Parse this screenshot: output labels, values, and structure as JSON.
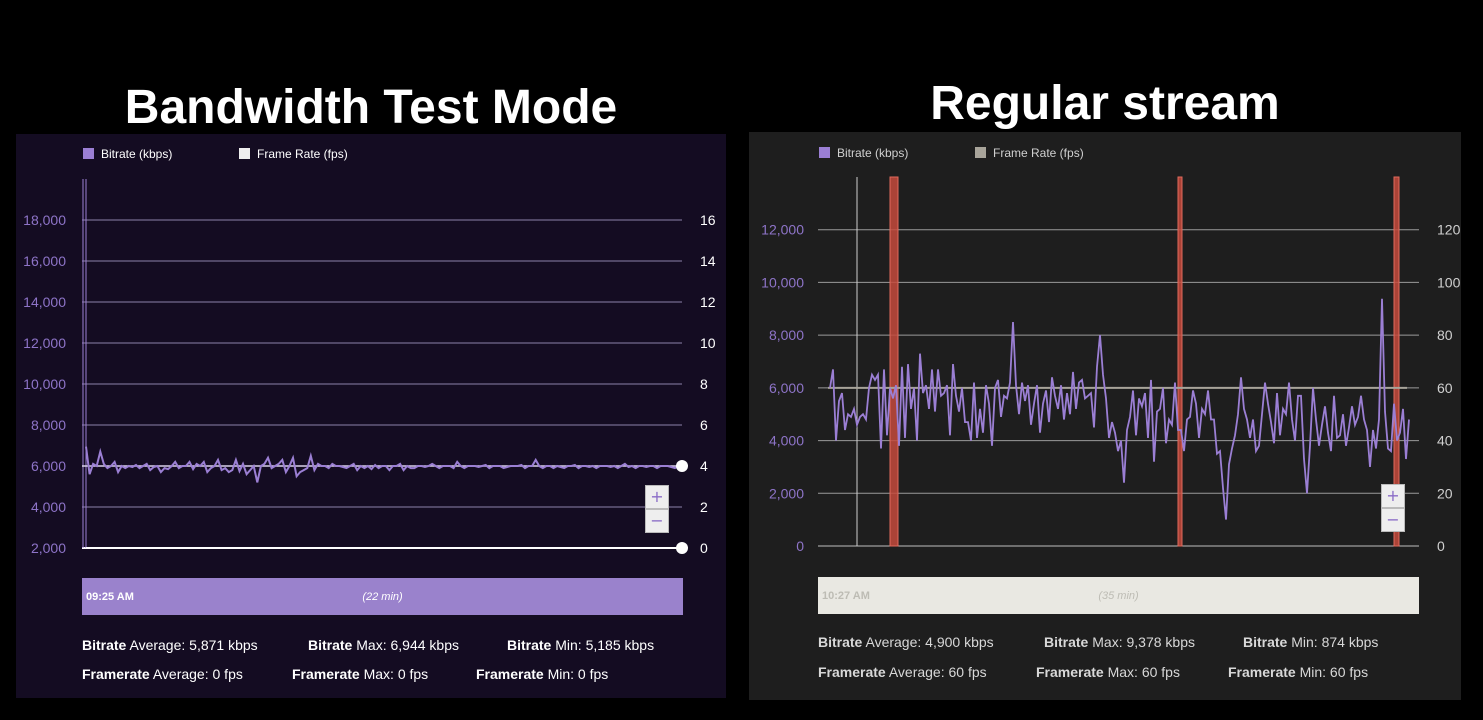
{
  "headings": {
    "left": "Bandwidth Test Mode",
    "right": "Regular stream"
  },
  "chart_data": [
    {
      "type": "line",
      "title": "Bandwidth Test Mode",
      "legend": [
        "Bitrate (kbps)",
        "Frame Rate (fps)"
      ],
      "legend_placement": "top-left",
      "grid": true,
      "y_left_ticks": [
        "2,000",
        "4,000",
        "6,000",
        "8,000",
        "10,000",
        "12,000",
        "14,000",
        "16,000",
        "18,000"
      ],
      "y_right_ticks": [
        "0",
        "2",
        "4",
        "6",
        "8",
        "10",
        "12",
        "14",
        "16"
      ],
      "ylim_left": [
        2000,
        20000
      ],
      "ylim_right": [
        0,
        18
      ],
      "series": [
        {
          "name": "Bitrate (kbps)",
          "color": "#9b7fd4",
          "values": [
            6944,
            5600,
            6100,
            6000,
            6700,
            6100,
            5900,
            6000,
            6200,
            5700,
            6000,
            5900,
            6000,
            5950,
            6050,
            5900,
            6000,
            6100,
            5800,
            5950,
            6000,
            5700,
            5900,
            5850,
            6000,
            6200,
            5900,
            6000,
            6000,
            6200,
            5850,
            6100,
            6000,
            6200,
            5700,
            5900,
            6000,
            6300,
            5800,
            5900,
            5700,
            5800,
            6300,
            5750,
            6100,
            5600,
            5800,
            6000,
            5200,
            6000,
            6100,
            6400,
            5900,
            6000,
            6100,
            6300,
            5700,
            6000,
            6400,
            5500,
            5700,
            5800,
            5900,
            6500,
            5800,
            6100,
            6000,
            6000,
            5900,
            6100,
            6000,
            6000,
            5950,
            5900,
            6000,
            6100,
            5800,
            6000,
            5900,
            6000,
            5850,
            6050,
            5900,
            6000,
            6000,
            5800,
            6000,
            6000,
            6100,
            5800,
            6000,
            5900,
            5900,
            6000,
            6000,
            5950,
            6000,
            6100,
            6000,
            5900,
            6000,
            6000,
            6000,
            5900,
            6200,
            6000,
            5900,
            6000,
            6000,
            6000,
            5950,
            6000,
            6050,
            5900,
            6000,
            6000,
            6000,
            5900,
            5950,
            6000,
            6000,
            6000,
            6050,
            5900,
            6000,
            6000,
            6300,
            6000,
            5900,
            6000,
            6000,
            5900,
            6000,
            5950,
            5900,
            6000,
            6000,
            6050,
            5900,
            6000,
            6000,
            5950,
            6000,
            5900,
            6000,
            6000,
            6000,
            5950,
            6000,
            5900,
            6000,
            6100,
            5950,
            6000,
            5900,
            6000,
            6000,
            5950,
            6000,
            6000,
            5900,
            6000,
            6000,
            6000,
            5950,
            5900,
            6000,
            6000
          ]
        },
        {
          "name": "Frame Rate (fps)",
          "color": "#ffffff",
          "values": [
            0,
            0
          ]
        }
      ],
      "overlay_line_value_kbps": 6000,
      "zoom": {
        "plus": "+",
        "minus": "−"
      },
      "timeline": {
        "start": "09:25 AM",
        "duration": "(22 min)"
      },
      "stats": {
        "bitrate_label": "Bitrate",
        "framerate_label": "Framerate",
        "bitrate_avg": "Average: 5,871 kbps",
        "bitrate_max": "Max: 6,944 kbps",
        "bitrate_min": "Min: 5,185 kbps",
        "framerate_avg": "Average: 0 fps",
        "framerate_max": "Max: 0 fps",
        "framerate_min": "Min: 0 fps"
      }
    },
    {
      "type": "line",
      "title": "Regular stream",
      "legend": [
        "Bitrate (kbps)",
        "Frame Rate (fps)"
      ],
      "legend_placement": "top-left",
      "grid": true,
      "y_left_ticks": [
        "0",
        "2,000",
        "4,000",
        "6,000",
        "8,000",
        "10,000",
        "12,000"
      ],
      "y_right_ticks": [
        "0",
        "20",
        "40",
        "60",
        "80",
        "100",
        "120"
      ],
      "ylim_left": [
        0,
        14000
      ],
      "ylim_right": [
        0,
        140
      ],
      "series": [
        {
          "name": "Bitrate (kbps)",
          "color": "#9b7fd4",
          "values": [
            6000,
            6700,
            4000,
            5500,
            5800,
            4400,
            5000,
            4900,
            5200,
            4600,
            4900,
            5000,
            4800,
            6000,
            6500,
            6300,
            6500,
            3700,
            6700,
            4200,
            6000,
            5600,
            6100,
            3800,
            6800,
            4100,
            6900,
            5200,
            6000,
            4000,
            7300,
            5800,
            6100,
            5200,
            6700,
            5100,
            6700,
            5700,
            5800,
            6100,
            4200,
            6900,
            5700,
            5100,
            6000,
            4700,
            4700,
            4000,
            6200,
            4100,
            5200,
            4300,
            6100,
            5400,
            3800,
            6000,
            6300,
            4900,
            5700,
            5600,
            6200,
            8500,
            6100,
            5000,
            6200,
            5500,
            6100,
            4600,
            5400,
            6100,
            4300,
            5400,
            5900,
            4700,
            6400,
            5700,
            5200,
            6100,
            4800,
            5800,
            5000,
            6600,
            5200,
            6200,
            6300,
            5600,
            5700,
            5800,
            4500,
            6800,
            8000,
            6500,
            5600,
            4100,
            4700,
            4300,
            3600,
            4000,
            2400,
            4400,
            4900,
            5900,
            4200,
            5600,
            5300,
            5800,
            4100,
            6300,
            3200,
            5100,
            5200,
            6000,
            3900,
            4800,
            4600,
            6200,
            4400,
            4400,
            3600,
            4800,
            4900,
            5900,
            5400,
            4100,
            5200,
            5000,
            5900,
            4800,
            4800,
            3500,
            3600,
            2200,
            1000,
            3100,
            3700,
            4200,
            5000,
            6400,
            5200,
            4800,
            4100,
            4800,
            3600,
            3800,
            5000,
            6200,
            5400,
            4700,
            3900,
            5800,
            4200,
            5200,
            5000,
            6200,
            4800,
            4000,
            5700,
            5700,
            3300,
            2000,
            3800,
            6000,
            4800,
            3800,
            4600,
            5300,
            4300,
            3600,
            5700,
            4100,
            4200,
            5000,
            3800,
            4500,
            5300,
            4600,
            4900,
            5700,
            4800,
            4400,
            3000,
            4400,
            3700,
            4800,
            9378,
            5100,
            3700,
            3600,
            5400,
            4000,
            4300,
            5200,
            3300,
            4800
          ]
        },
        {
          "name": "Frame Rate (fps)",
          "color": "#a8a49a",
          "values": [
            60,
            60
          ]
        }
      ],
      "zoom": {
        "plus": "+",
        "minus": "−"
      },
      "timeline": {
        "start": "10:27 AM",
        "duration": "(35 min)"
      },
      "stats": {
        "bitrate_label": "Bitrate",
        "framerate_label": "Framerate",
        "bitrate_avg": "Average: 4,900 kbps",
        "bitrate_max": "Max: 9,378 kbps",
        "bitrate_min": "Min: 874 kbps",
        "framerate_avg": "Average: 60 fps",
        "framerate_max": "Max: 60 fps",
        "framerate_min": "Min: 60 fps"
      }
    }
  ]
}
